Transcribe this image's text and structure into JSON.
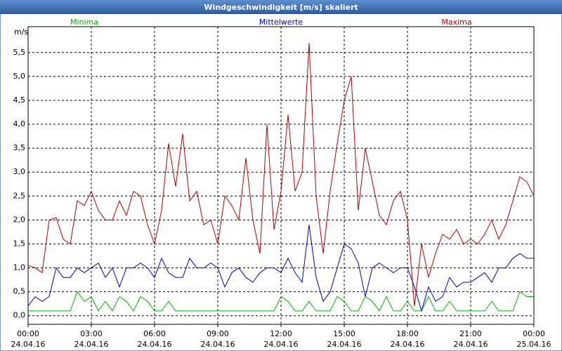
{
  "chart_data": {
    "type": "line",
    "title": "Windgeschwindigkeit [m/s] skaliert",
    "y_label": "m/s",
    "x": [
      0,
      20,
      40,
      60,
      80,
      100,
      120,
      140,
      160,
      180,
      200,
      220,
      240,
      260,
      280,
      300,
      320,
      340,
      360,
      380,
      400,
      420,
      440,
      460,
      480,
      500,
      520,
      540,
      560,
      580,
      600,
      620,
      640,
      660,
      680,
      700,
      720,
      740,
      760,
      780,
      800,
      820,
      840,
      860,
      880,
      900,
      920,
      940,
      960,
      980,
      1000,
      1020,
      1040,
      1060,
      1080,
      1100,
      1120,
      1140,
      1160,
      1180,
      1200,
      1220,
      1240,
      1260,
      1280,
      1300,
      1320,
      1340,
      1360,
      1380,
      1400,
      1420,
      1440
    ],
    "series": [
      {
        "name": "Minima",
        "color": "#00b000",
        "values": [
          0.1,
          0.1,
          0.1,
          0.1,
          0.1,
          0.1,
          0.1,
          0.5,
          0.3,
          0.4,
          0.1,
          0.3,
          0.1,
          0.4,
          0.3,
          0.1,
          0.4,
          0.3,
          0.1,
          0.1,
          0.3,
          0.1,
          0.1,
          0.1,
          0.1,
          0.1,
          0.1,
          0.1,
          0.1,
          0.1,
          0.1,
          0.1,
          0.1,
          0.1,
          0.1,
          0.1,
          0.4,
          0.3,
          0.1,
          0.1,
          0.3,
          0.1,
          0.1,
          0.1,
          0.4,
          0.3,
          0.1,
          0.1,
          0.4,
          0.3,
          0.1,
          0.4,
          0.1,
          0.1,
          0.3,
          0.1,
          0.1,
          0.4,
          0.1,
          0.1,
          0.3,
          0.1,
          0.1,
          0.1,
          0.1,
          0.1,
          0.3,
          0.1,
          0.1,
          0.1,
          0.5,
          0.4,
          0.4
        ]
      },
      {
        "name": "Mittelwerte",
        "color": "#0000c0",
        "values": [
          0.2,
          0.4,
          0.3,
          0.4,
          1.0,
          0.8,
          0.8,
          1.0,
          0.9,
          1.0,
          1.1,
          0.8,
          1.0,
          0.6,
          1.0,
          1.0,
          1.1,
          1.0,
          0.8,
          1.2,
          0.9,
          0.8,
          0.8,
          1.2,
          1.0,
          1.0,
          1.1,
          1.0,
          0.6,
          0.9,
          1.0,
          0.8,
          0.7,
          0.9,
          1.0,
          1.0,
          0.9,
          1.2,
          0.9,
          0.7,
          1.9,
          0.8,
          0.3,
          0.5,
          1.0,
          1.5,
          1.4,
          1.1,
          0.4,
          1.0,
          1.1,
          1.0,
          0.9,
          1.0,
          1.0,
          0.6,
          0.1,
          0.6,
          0.3,
          0.4,
          0.8,
          0.6,
          0.7,
          0.7,
          0.8,
          0.9,
          0.7,
          1.0,
          1.0,
          1.2,
          1.3,
          1.2,
          1.2
        ]
      },
      {
        "name": "Maxima",
        "color": "#b00000",
        "values": [
          1.05,
          1.0,
          0.9,
          2.0,
          2.05,
          1.6,
          1.5,
          2.4,
          2.3,
          2.6,
          2.2,
          2.0,
          2.0,
          2.4,
          2.1,
          2.6,
          2.5,
          1.9,
          1.5,
          2.2,
          3.6,
          2.7,
          3.8,
          2.4,
          2.6,
          1.9,
          2.0,
          1.5,
          2.5,
          2.3,
          2.0,
          3.3,
          2.0,
          1.3,
          4.0,
          1.8,
          2.6,
          4.2,
          2.6,
          3.0,
          5.7,
          2.5,
          1.3,
          2.6,
          3.6,
          4.5,
          5.0,
          2.2,
          3.5,
          2.8,
          2.1,
          1.9,
          2.4,
          2.6,
          2.0,
          0.2,
          1.5,
          0.8,
          1.3,
          1.7,
          1.6,
          1.8,
          1.5,
          1.6,
          1.5,
          1.7,
          2.0,
          1.6,
          1.9,
          2.4,
          2.9,
          2.8,
          2.5
        ]
      }
    ],
    "xlim": [
      0,
      1440
    ],
    "xticks": [
      {
        "value": 0,
        "label": "00:00"
      },
      {
        "value": 180,
        "label": "03:00"
      },
      {
        "value": 360,
        "label": "06:00"
      },
      {
        "value": 540,
        "label": "09:00"
      },
      {
        "value": 720,
        "label": "12:00"
      },
      {
        "value": 900,
        "label": "15:00"
      },
      {
        "value": 1080,
        "label": "18:00"
      },
      {
        "value": 1260,
        "label": "21:00"
      },
      {
        "value": 1440,
        "label": "00:00"
      }
    ],
    "xtick_dates": [
      "24.04.16",
      "24.04.16",
      "24.04.16",
      "24.04.16",
      "24.04.16",
      "24.04.16",
      "24.04.16",
      "24.04.16",
      "25.04.16"
    ],
    "ylim": [
      -0.18,
      6.04
    ],
    "yticks": [
      {
        "value": 0,
        "label": "0,0"
      },
      {
        "value": 0.5,
        "label": "0,5"
      },
      {
        "value": 1,
        "label": "1,0"
      },
      {
        "value": 1.5,
        "label": "1,5"
      },
      {
        "value": 2,
        "label": "2,0"
      },
      {
        "value": 2.5,
        "label": "2,5"
      },
      {
        "value": 3,
        "label": "3,0"
      },
      {
        "value": 3.5,
        "label": "3,5"
      },
      {
        "value": 4,
        "label": "4,0"
      },
      {
        "value": 4.5,
        "label": "4,5"
      },
      {
        "value": 5,
        "label": "5,0"
      },
      {
        "value": 5.5,
        "label": "5,5"
      }
    ],
    "grid": true
  }
}
